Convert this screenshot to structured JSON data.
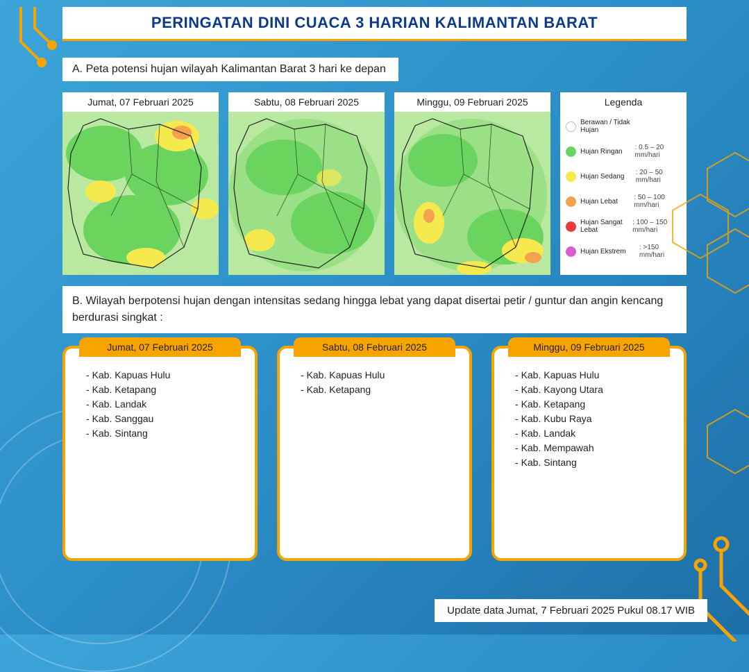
{
  "colors": {
    "bg_gradient_from": "#3da5d9",
    "bg_gradient_to": "#1e6fa8",
    "title_color": "#0d3b8c",
    "accent_orange": "#f7a400",
    "white": "#ffffff",
    "text": "#222222",
    "map_green_light": "#b9e8a0",
    "map_green": "#6bd45f",
    "map_yellow": "#f5e94e",
    "map_orange": "#f5a24e"
  },
  "title": "PERINGATAN DINI CUACA 3 HARIAN KALIMANTAN BARAT",
  "section_a": "A. Peta potensi hujan wilayah Kalimantan Barat 3 hari ke depan",
  "maps": [
    {
      "label": "Jumat, 07 Februari 2025"
    },
    {
      "label": "Sabtu, 08 Februari 2025"
    },
    {
      "label": "Minggu, 09 Februari 2025"
    }
  ],
  "legend_title": "Legenda",
  "legend": [
    {
      "color": "#ffffff",
      "border": "#bbbbbb",
      "label": "Berawan / Tidak Hujan",
      "range": ""
    },
    {
      "color": "#6bd45f",
      "border": "#6bd45f",
      "label": "Hujan Ringan",
      "range": ": 0.5 – 20 mm/hari"
    },
    {
      "color": "#f5e94e",
      "border": "#f5e94e",
      "label": "Hujan Sedang",
      "range": ": 20 – 50 mm/hari"
    },
    {
      "color": "#f5a24e",
      "border": "#f5a24e",
      "label": "Hujan Lebat",
      "range": ": 50 – 100 mm/hari"
    },
    {
      "color": "#e83c3c",
      "border": "#e83c3c",
      "label": "Hujan Sangat Lebat",
      "range": ": 100 – 150 mm/hari"
    },
    {
      "color": "#d75fd1",
      "border": "#d75fd1",
      "label": "Hujan Ekstrem",
      "range": ": >150 mm/hari"
    }
  ],
  "section_b": "B. Wilayah berpotensi hujan dengan intensitas sedang hingga lebat yang dapat disertai petir / guntur dan angin kencang berdurasi singkat :",
  "cards": [
    {
      "date": "Jumat, 07 Februari 2025",
      "items": [
        "Kab. Kapuas Hulu",
        "Kab. Ketapang",
        "Kab. Landak",
        "Kab. Sanggau",
        "Kab. Sintang"
      ]
    },
    {
      "date": "Sabtu, 08 Februari 2025",
      "items": [
        "Kab. Kapuas Hulu",
        "Kab. Ketapang"
      ]
    },
    {
      "date": "Minggu, 09 Februari 2025",
      "items": [
        "Kab. Kapuas Hulu",
        "Kab. Kayong Utara",
        "Kab. Ketapang",
        "Kab. Kubu Raya",
        "Kab. Landak",
        "Kab. Mempawah",
        "Kab. Sintang"
      ]
    }
  ],
  "update": "Update data Jumat, 7 Februari 2025 Pukul 08.17 WIB"
}
